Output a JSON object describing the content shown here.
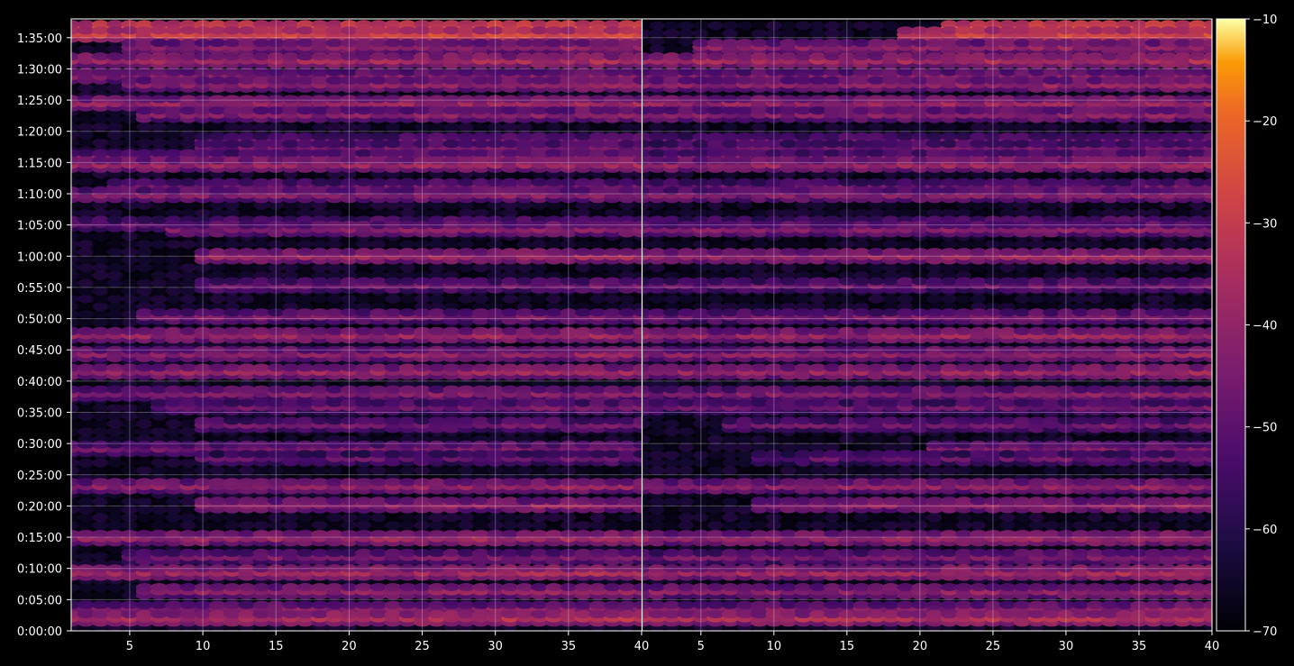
{
  "chart_data": {
    "type": "heatmap",
    "title": "",
    "xlabel": "",
    "ylabel": "",
    "grid": true,
    "panels": [
      {
        "name": "",
        "xlim": [
          1,
          40
        ],
        "x_ticks": [
          5,
          10,
          15,
          20,
          25,
          30,
          35,
          40
        ]
      },
      {
        "name": "",
        "xlim": [
          1,
          40
        ],
        "x_ticks": [
          5,
          10,
          15,
          20,
          25,
          30,
          35,
          40
        ]
      }
    ],
    "y_range_seconds": [
      0,
      5880
    ],
    "y_ticks": [
      "0:00:00",
      "0:05:00",
      "0:10:00",
      "0:15:00",
      "0:20:00",
      "0:25:00",
      "0:30:00",
      "0:35:00",
      "0:40:00",
      "0:45:00",
      "0:50:00",
      "0:55:00",
      "1:00:00",
      "1:05:00",
      "1:10:00",
      "1:15:00",
      "1:20:00",
      "1:25:00",
      "1:30:00",
      "1:35:00"
    ],
    "colorbar": {
      "colormap": "inferno",
      "range": [
        -70,
        -10
      ],
      "ticks": [
        "−10",
        "−20",
        "−30",
        "−40",
        "−50",
        "−60",
        "−70"
      ],
      "tick_values": [
        -10,
        -20,
        -30,
        -40,
        -50,
        -60,
        -70
      ]
    },
    "bands": [
      {
        "t": 5790,
        "level": -26,
        "x_start": 1,
        "panel2": 0.45
      },
      {
        "t": 5730,
        "level": -30,
        "x_start": 1,
        "panel2": 0.55
      },
      {
        "t": 5610,
        "level": -42,
        "x_start": 5,
        "panel2": 0.9
      },
      {
        "t": 5480,
        "level": -38,
        "x_start": 1,
        "panel2": 1.0
      },
      {
        "t": 5330,
        "level": -44,
        "x_start": 1,
        "panel2": 1.0
      },
      {
        "t": 5250,
        "level": -42,
        "x_start": 5,
        "panel2": 1.0
      },
      {
        "t": 5070,
        "level": -40,
        "x_start": 1,
        "panel2": 1.0
      },
      {
        "t": 4960,
        "level": -44,
        "x_start": 6,
        "panel2": 1.0
      },
      {
        "t": 4710,
        "level": -48,
        "x_start": 10,
        "panel2": 1.0
      },
      {
        "t": 4640,
        "level": -48,
        "x_start": 10,
        "panel2": 1.0
      },
      {
        "t": 4550,
        "level": -46,
        "x_start": 1,
        "panel2": 1.0
      },
      {
        "t": 4480,
        "level": -40,
        "x_start": 1,
        "panel2": 1.0
      },
      {
        "t": 4270,
        "level": -48,
        "x_start": 4,
        "panel2": 1.0
      },
      {
        "t": 4190,
        "level": -44,
        "x_start": 1,
        "panel2": 1.0
      },
      {
        "t": 3910,
        "level": -48,
        "x_start": 1,
        "panel2": 1.0
      },
      {
        "t": 3860,
        "level": -44,
        "x_start": 8,
        "panel2": 1.0
      },
      {
        "t": 3600,
        "level": -40,
        "x_start": 10,
        "panel2": 1.0
      },
      {
        "t": 3320,
        "level": -48,
        "x_start": 10,
        "panel2": 1.0
      },
      {
        "t": 3020,
        "level": -46,
        "x_start": 6,
        "panel2": 1.0
      },
      {
        "t": 2840,
        "level": -40,
        "x_start": 1,
        "panel2": 1.0
      },
      {
        "t": 2660,
        "level": -42,
        "x_start": 1,
        "panel2": 1.0
      },
      {
        "t": 2490,
        "level": -40,
        "x_start": 1,
        "panel2": 1.0
      },
      {
        "t": 2280,
        "level": -44,
        "x_start": 1,
        "panel2": 1.0
      },
      {
        "t": 2150,
        "level": -48,
        "x_start": 7,
        "panel2": 1.0
      },
      {
        "t": 1980,
        "level": -48,
        "x_start": 10,
        "panel2": 0.85
      },
      {
        "t": 1750,
        "level": -46,
        "x_start": 1,
        "panel2": 0.5
      },
      {
        "t": 1660,
        "level": -50,
        "x_start": 10,
        "panel2": 0.8
      },
      {
        "t": 1390,
        "level": -42,
        "x_start": 1,
        "panel2": 1.0
      },
      {
        "t": 1210,
        "level": -42,
        "x_start": 10,
        "panel2": 0.8
      },
      {
        "t": 890,
        "level": -40,
        "x_start": 1,
        "panel2": 1.0
      },
      {
        "t": 710,
        "level": -46,
        "x_start": 5,
        "panel2": 1.0
      },
      {
        "t": 560,
        "level": -38,
        "x_start": 1,
        "panel2": 1.0
      },
      {
        "t": 380,
        "level": -42,
        "x_start": 6,
        "panel2": 1.0
      },
      {
        "t": 210,
        "level": -44,
        "x_start": 1,
        "panel2": 1.0
      },
      {
        "t": 120,
        "level": -36,
        "x_start": 1,
        "panel2": 1.0
      }
    ]
  }
}
